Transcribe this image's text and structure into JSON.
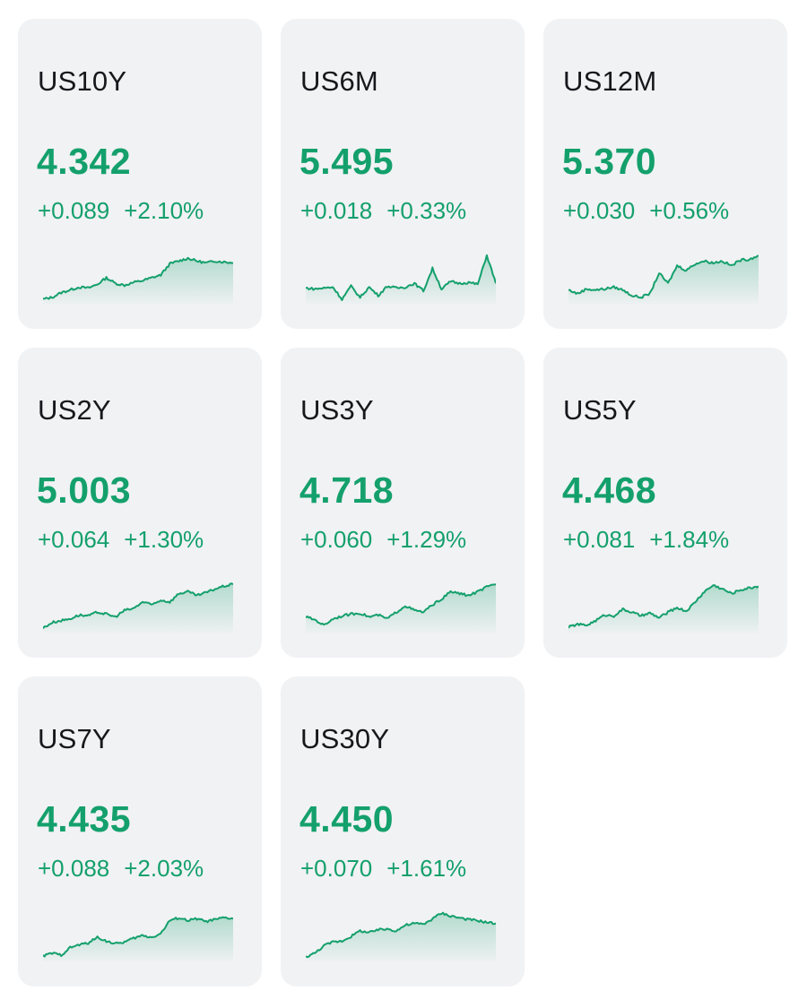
{
  "accent_color": "#14a06c",
  "cards": [
    {
      "symbol": "US10Y",
      "price": "4.342",
      "change": "+0.089",
      "change_pct": "+2.10%",
      "trend": [
        0.02,
        0.06,
        0.16,
        0.22,
        0.28,
        0.26,
        0.34,
        0.48,
        0.36,
        0.32,
        0.38,
        0.42,
        0.48,
        0.54,
        0.78,
        0.84,
        0.9,
        0.84,
        0.8,
        0.84,
        0.82,
        0.8
      ]
    },
    {
      "symbol": "US6M",
      "price": "5.495",
      "change": "+0.018",
      "change_pct": "+0.33%",
      "trend": [
        0.26,
        0.24,
        0.26,
        0.28,
        0.02,
        0.3,
        0.06,
        0.28,
        0.1,
        0.3,
        0.26,
        0.28,
        0.36,
        0.2,
        0.68,
        0.24,
        0.4,
        0.36,
        0.38,
        0.34,
        0.96,
        0.36
      ]
    },
    {
      "symbol": "US12M",
      "price": "5.370",
      "change": "+0.030",
      "change_pct": "+0.56%",
      "trend": [
        0.22,
        0.14,
        0.24,
        0.22,
        0.24,
        0.28,
        0.22,
        0.1,
        0.06,
        0.14,
        0.58,
        0.36,
        0.74,
        0.64,
        0.78,
        0.84,
        0.8,
        0.84,
        0.74,
        0.86,
        0.88,
        0.96
      ]
    },
    {
      "symbol": "US2Y",
      "price": "5.003",
      "change": "+0.064",
      "change_pct": "+1.30%",
      "trend": [
        0.02,
        0.14,
        0.18,
        0.22,
        0.3,
        0.28,
        0.36,
        0.32,
        0.26,
        0.4,
        0.44,
        0.58,
        0.52,
        0.62,
        0.58,
        0.76,
        0.8,
        0.72,
        0.78,
        0.86,
        0.92,
        0.96
      ]
    },
    {
      "symbol": "US3Y",
      "price": "4.718",
      "change": "+0.060",
      "change_pct": "+1.29%",
      "trend": [
        0.26,
        0.2,
        0.08,
        0.22,
        0.28,
        0.32,
        0.34,
        0.26,
        0.3,
        0.22,
        0.36,
        0.5,
        0.4,
        0.36,
        0.52,
        0.64,
        0.8,
        0.76,
        0.72,
        0.8,
        0.9,
        0.96
      ]
    },
    {
      "symbol": "US5Y",
      "price": "4.468",
      "change": "+0.081",
      "change_pct": "+1.84%",
      "trend": [
        0.04,
        0.1,
        0.08,
        0.18,
        0.3,
        0.28,
        0.42,
        0.36,
        0.28,
        0.34,
        0.24,
        0.36,
        0.46,
        0.38,
        0.58,
        0.8,
        0.94,
        0.86,
        0.76,
        0.84,
        0.88,
        0.92
      ]
    },
    {
      "symbol": "US7Y",
      "price": "4.435",
      "change": "+0.088",
      "change_pct": "+2.03%",
      "trend": [
        0.04,
        0.1,
        0.06,
        0.22,
        0.28,
        0.32,
        0.44,
        0.36,
        0.3,
        0.34,
        0.42,
        0.48,
        0.44,
        0.52,
        0.8,
        0.86,
        0.8,
        0.84,
        0.78,
        0.82,
        0.86,
        0.84
      ]
    },
    {
      "symbol": "US30Y",
      "price": "4.450",
      "change": "+0.070",
      "change_pct": "+1.61%",
      "trend": [
        0.02,
        0.1,
        0.26,
        0.34,
        0.36,
        0.46,
        0.58,
        0.54,
        0.6,
        0.62,
        0.58,
        0.7,
        0.74,
        0.72,
        0.84,
        0.96,
        0.9,
        0.86,
        0.82,
        0.8,
        0.76,
        0.74
      ]
    }
  ]
}
